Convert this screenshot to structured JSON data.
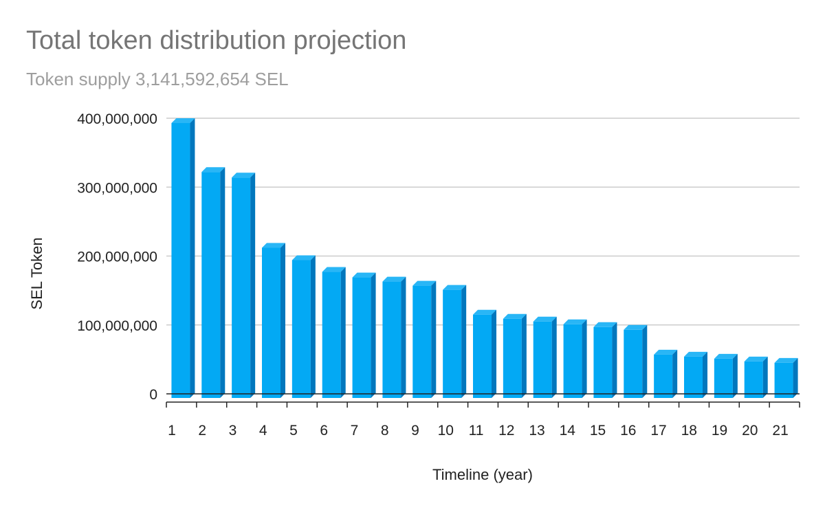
{
  "chart_data": {
    "type": "bar",
    "title": "Total token distribution projection",
    "subtitle": "Token supply 3,141,592,654 SEL",
    "xlabel": "Timeline (year)",
    "ylabel": "SEL Token",
    "categories": [
      "1",
      "2",
      "3",
      "4",
      "5",
      "6",
      "7",
      "8",
      "9",
      "10",
      "11",
      "12",
      "13",
      "14",
      "15",
      "16",
      "17",
      "18",
      "19",
      "20",
      "21"
    ],
    "values": [
      393000000,
      322000000,
      314000000,
      212000000,
      194000000,
      177000000,
      169000000,
      163000000,
      157000000,
      151000000,
      115000000,
      109000000,
      105000000,
      101000000,
      97000000,
      93000000,
      57000000,
      54000000,
      51000000,
      47000000,
      45000000
    ],
    "ylim": [
      0,
      400000000
    ],
    "yticks": [
      "0",
      "100,000,000",
      "200,000,000",
      "300,000,000",
      "400,000,000"
    ],
    "grid": true,
    "style": "3d",
    "colors": {
      "bar_front": "#03a9f4",
      "bar_top": "#29b6f6",
      "bar_side": "#0277bd",
      "grid": "#cccccc",
      "axis": "#222222"
    }
  }
}
